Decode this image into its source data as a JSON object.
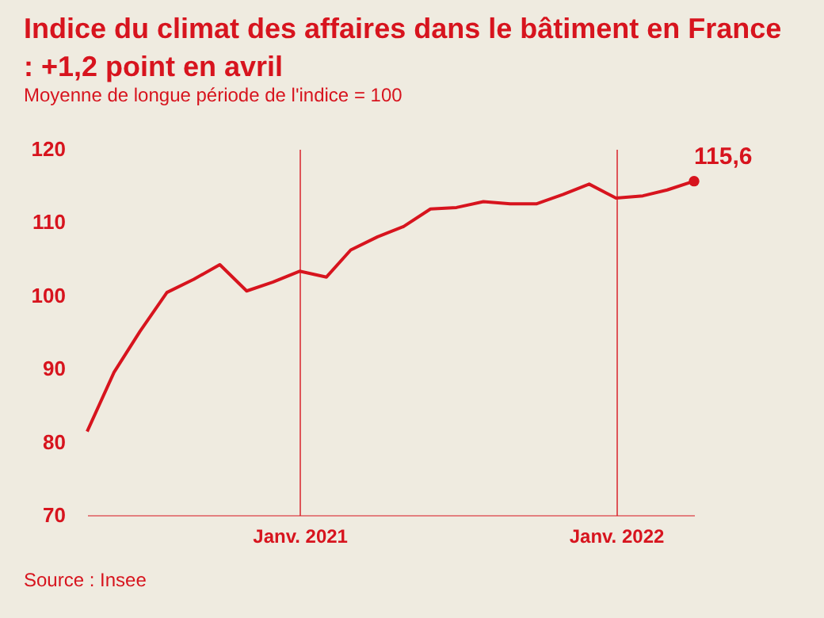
{
  "chart_data": {
    "type": "line",
    "title": "Indice du climat des affaires dans le bâtiment en France : +1,2 point en avril",
    "subtitle": "Moyenne de longue période de l'indice = 100",
    "x": [
      "2020-05",
      "2020-06",
      "2020-07",
      "2020-08",
      "2020-09",
      "2020-10",
      "2020-11",
      "2020-12",
      "2021-01",
      "2021-02",
      "2021-03",
      "2021-04",
      "2021-05",
      "2021-06",
      "2021-07",
      "2021-08",
      "2021-09",
      "2021-10",
      "2021-11",
      "2021-12",
      "2022-01",
      "2022-02",
      "2022-03",
      "2022-04"
    ],
    "series": [
      {
        "color": "#d7141e",
        "values": [
          81.4,
          89.5,
          95.1,
          100.4,
          102.2,
          104.2,
          100.6,
          101.8,
          103.3,
          102.5,
          106.2,
          108.0,
          109.4,
          111.8,
          112.0,
          112.8,
          112.5,
          112.5,
          113.8,
          115.2,
          113.3,
          113.6,
          114.4,
          115.6
        ],
        "value_labels": [
          null,
          null,
          null,
          null,
          null,
          null,
          null,
          null,
          null,
          null,
          null,
          null,
          null,
          null,
          null,
          null,
          null,
          null,
          null,
          null,
          null,
          null,
          null,
          "115,6"
        ]
      }
    ],
    "xlim": [
      "2020-05",
      "2022-04"
    ],
    "xticks": [
      {
        "value": "2021-01",
        "label": "Janv. 2021"
      },
      {
        "value": "2022-01",
        "label": "Janv. 2022"
      }
    ],
    "ylim": [
      70,
      120
    ],
    "yticks": [
      70,
      80,
      90,
      100,
      110,
      120
    ],
    "grid": "x",
    "marker": "none",
    "line_style": "solid",
    "annotations": [
      "Source : Insee"
    ]
  }
}
